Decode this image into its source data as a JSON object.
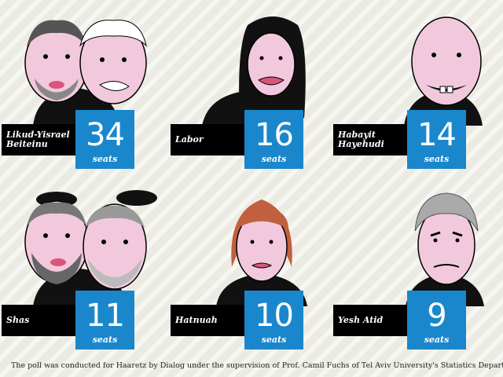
{
  "chart_data": {
    "type": "table",
    "title": "",
    "categories": [
      "Likud-Yisrael Beiteinu",
      "Labor",
      "Habayit Hayehudi",
      "Shas",
      "Hatnuah",
      "Yesh Atid"
    ],
    "values": [
      34,
      16,
      14,
      11,
      10,
      9
    ],
    "unit_label": "seats",
    "footnote": "The poll was conducted for Haaretz by Dialog under the supervision of Prof. Camil Fuchs of Tel Aviv University's Statistics Department."
  },
  "parties": [
    {
      "label_line1": "Likud-Yisrael",
      "label_line2": "Beiteinu",
      "seats": "34",
      "unit": "seats"
    },
    {
      "label_line1": "Labor",
      "label_line2": "",
      "seats": "16",
      "unit": "seats"
    },
    {
      "label_line1": "Habayit",
      "label_line2": "Hayehudi",
      "seats": "14",
      "unit": "seats"
    },
    {
      "label_line1": "Shas",
      "label_line2": "",
      "seats": "11",
      "unit": "seats"
    },
    {
      "label_line1": "Hatnuah",
      "label_line2": "",
      "seats": "10",
      "unit": "seats"
    },
    {
      "label_line1": "Yesh Atid",
      "label_line2": "",
      "seats": "9",
      "unit": "seats"
    }
  ],
  "colors": {
    "accent": "#1a87cc",
    "label_bg": "#000000",
    "skin": "#f2c9dc",
    "background": "#ecebe3"
  }
}
